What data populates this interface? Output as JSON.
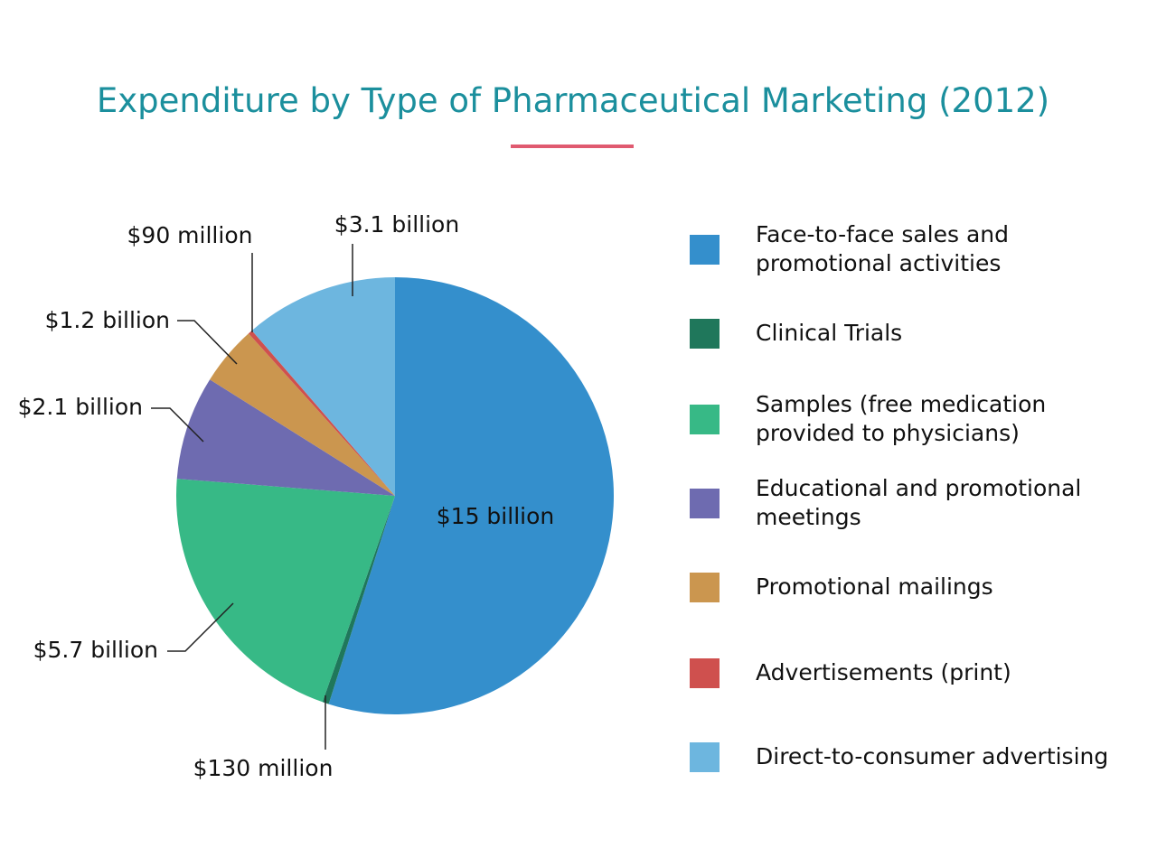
{
  "chart_data": {
    "type": "pie",
    "title": "Expenditure by Type of Pharmaceutical Marketing (2012)",
    "unit": "USD billions",
    "start_angle": "12 o'clock, clockwise",
    "legend_position": "right",
    "slices": [
      {
        "name": "Face-to-face sales and promotional activities",
        "value": 15,
        "label": "$15 billion",
        "color": "#348fcc"
      },
      {
        "name": "Clinical Trials",
        "value": 0.13,
        "label": "$130 million",
        "color": "#1f775b"
      },
      {
        "name": "Samples (free medication provided to physicians)",
        "value": 5.7,
        "label": "$5.7 billion",
        "color": "#37b986"
      },
      {
        "name": "Educational and promotional meetings",
        "value": 2.1,
        "label": "$2.1 billion",
        "color": "#6e6bb0"
      },
      {
        "name": "Promotional mailings",
        "value": 1.2,
        "label": "$1.2 billion",
        "color": "#cb964f"
      },
      {
        "name": "Advertisements (print)",
        "value": 0.09,
        "label": "$90 million",
        "color": "#cf504e"
      },
      {
        "name": "Direct-to-consumer advertising",
        "value": 3.1,
        "label": "$3.1 billion",
        "color": "#6db6df"
      }
    ]
  },
  "legend": [
    {
      "lines": [
        "Face-to-face sales and",
        "promotional activities"
      ]
    },
    {
      "lines": [
        "Clinical Trials"
      ]
    },
    {
      "lines": [
        "Samples (free medication",
        "provided to physicians)"
      ]
    },
    {
      "lines": [
        "Educational and promotional",
        "meetings"
      ]
    },
    {
      "lines": [
        "Promotional mailings"
      ]
    },
    {
      "lines": [
        "Advertisements (print)"
      ]
    },
    {
      "lines": [
        "Direct-to-consumer advertising"
      ]
    }
  ],
  "accent_color": "#e05a70",
  "title_color": "#1b8f9d"
}
